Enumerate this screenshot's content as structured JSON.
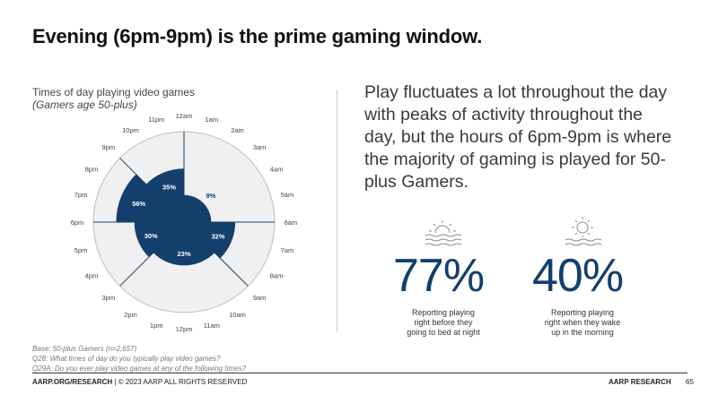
{
  "title": "Evening (6pm-9pm) is the prime gaming window.",
  "chart_data": {
    "type": "polar-area",
    "title": "Times of day playing video games",
    "subtitle": "(Gamers age 50-plus)",
    "hour_labels": [
      "12am",
      "1am",
      "2am",
      "3am",
      "4am",
      "5am",
      "6am",
      "7am",
      "8am",
      "9am",
      "10am",
      "11am",
      "12pm",
      "1pm",
      "2pm",
      "3pm",
      "4pm",
      "5pm",
      "6pm",
      "7pm",
      "8pm",
      "9pm",
      "10pm",
      "11pm"
    ],
    "segments": [
      {
        "period": "12am-6am",
        "value": 9,
        "label": "9%"
      },
      {
        "period": "6am-9am",
        "value": 32,
        "label": "32%"
      },
      {
        "period": "9am-3pm",
        "value": 23,
        "label": "23%"
      },
      {
        "period": "3pm-6pm",
        "value": 30,
        "label": "30%"
      },
      {
        "period": "6pm-9pm",
        "value": 56,
        "label": "56%"
      },
      {
        "period": "9pm-12am",
        "value": 35,
        "label": "35%"
      }
    ],
    "value_max": 100,
    "colors": {
      "fill": "#143f6c",
      "background": "#f0f0f0",
      "outline": "#bdbdbd",
      "divider": "#143f6c"
    }
  },
  "headline": "Play fluctuates a lot throughout the day with peaks of activity throughout the day, but the hours of 6pm-9pm is where the majority of gaming is played for 50-plus Gamers.",
  "stats": [
    {
      "value": "77%",
      "label_lines": [
        "Reporting playing",
        "right before they",
        "going to bed at night"
      ],
      "icon": "sunset-icon"
    },
    {
      "value": "40%",
      "label_lines": [
        "Reporting playing",
        "right when they wake",
        "up in the morning"
      ],
      "icon": "sunrise-icon"
    }
  ],
  "notes": [
    "Base: 50-plus Gamers (n=2,657)",
    "Q28: What times of day do you typically play video games?",
    "Q29A: Do you ever play video games at any of the following times?"
  ],
  "footer": {
    "site": "AARP.ORG/RESEARCH",
    "copyright": " | © 2023 AARP ALL RIGHTS RESERVED",
    "brand": "AARP RESEARCH",
    "page": "65"
  }
}
